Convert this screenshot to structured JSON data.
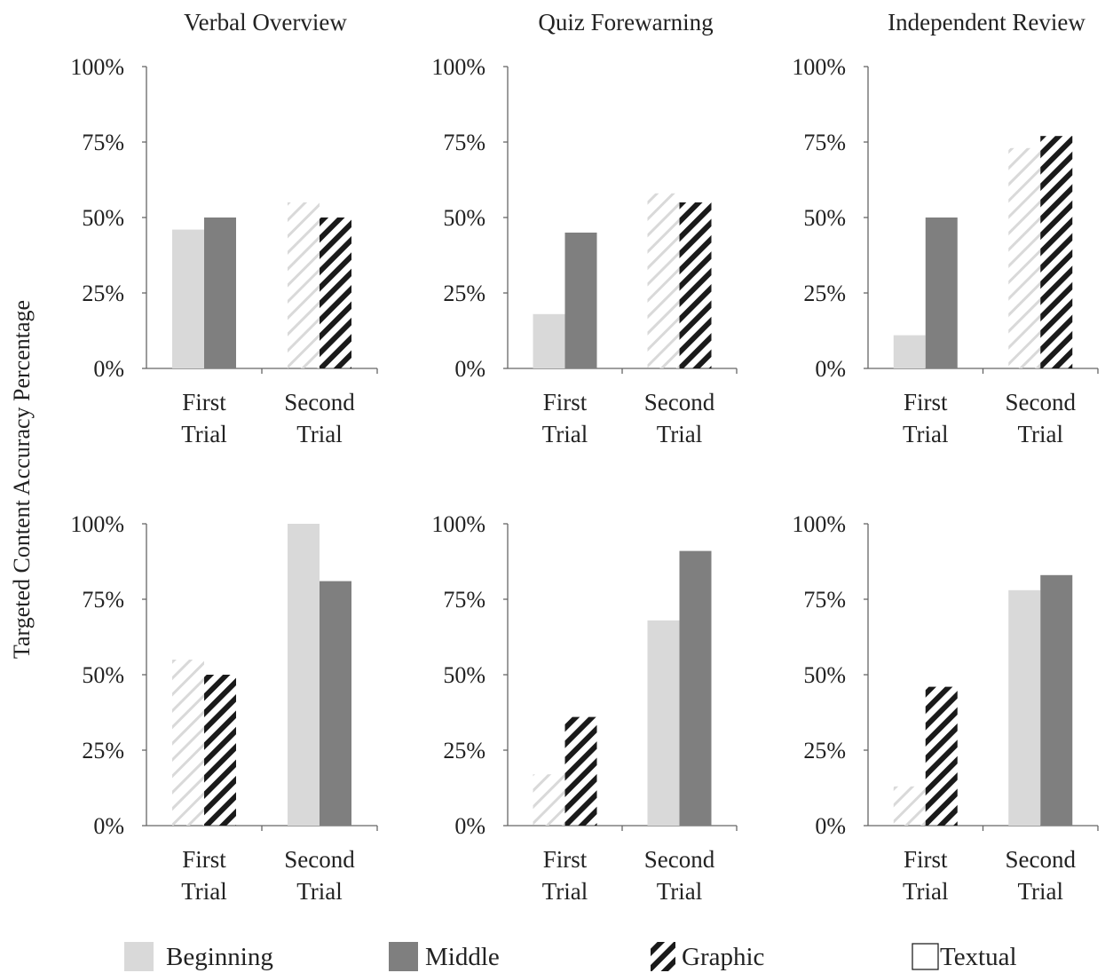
{
  "colors": {
    "beginning": "#d9d9d9",
    "middle": "#7f7f7f",
    "graphic_stripe": "#1a1a1a",
    "textual_stripe": "#d9d9d9"
  },
  "y_axis_label": "Targeted Content Accuracy Percentage",
  "legend": [
    {
      "key": "beginning",
      "label": "Beginning"
    },
    {
      "key": "middle",
      "label": "Middle"
    },
    {
      "key": "graphic",
      "label": "Graphic"
    },
    {
      "key": "textual",
      "label": "Textual"
    }
  ],
  "chart_data": [
    {
      "type": "bar",
      "title": "Verbal Overview",
      "ylim": [
        0,
        100
      ],
      "yticks": [
        "0%",
        "25%",
        "50%",
        "75%",
        "100%"
      ],
      "categories": [
        "First\nTrial",
        "Second\nTrial"
      ],
      "groups": [
        {
          "category": "First Trial",
          "bars": [
            {
              "series": "Beginning",
              "value": 46
            },
            {
              "series": "Middle",
              "value": 50
            }
          ]
        },
        {
          "category": "Second Trial",
          "bars": [
            {
              "series": "Textual",
              "value": 55
            },
            {
              "series": "Graphic",
              "value": 50
            }
          ]
        }
      ]
    },
    {
      "type": "bar",
      "title": "Quiz Forewarning",
      "ylim": [
        0,
        100
      ],
      "yticks": [
        "0%",
        "25%",
        "50%",
        "75%",
        "100%"
      ],
      "categories": [
        "First\nTrial",
        "Second\nTrial"
      ],
      "groups": [
        {
          "category": "First Trial",
          "bars": [
            {
              "series": "Beginning",
              "value": 18
            },
            {
              "series": "Middle",
              "value": 45
            }
          ]
        },
        {
          "category": "Second Trial",
          "bars": [
            {
              "series": "Textual",
              "value": 58
            },
            {
              "series": "Graphic",
              "value": 55
            }
          ]
        }
      ]
    },
    {
      "type": "bar",
      "title": "Independent Review",
      "ylim": [
        0,
        100
      ],
      "yticks": [
        "0%",
        "25%",
        "50%",
        "75%",
        "100%"
      ],
      "categories": [
        "First\nTrial",
        "Second\nTrial"
      ],
      "groups": [
        {
          "category": "First Trial",
          "bars": [
            {
              "series": "Beginning",
              "value": 11
            },
            {
              "series": "Middle",
              "value": 50
            }
          ]
        },
        {
          "category": "Second Trial",
          "bars": [
            {
              "series": "Textual",
              "value": 73
            },
            {
              "series": "Graphic",
              "value": 77
            }
          ]
        }
      ]
    },
    {
      "type": "bar",
      "title": "",
      "ylim": [
        0,
        100
      ],
      "yticks": [
        "0%",
        "25%",
        "50%",
        "75%",
        "100%"
      ],
      "categories": [
        "First\nTrial",
        "Second\nTrial"
      ],
      "groups": [
        {
          "category": "First Trial",
          "bars": [
            {
              "series": "Textual",
              "value": 55
            },
            {
              "series": "Graphic",
              "value": 50
            }
          ]
        },
        {
          "category": "Second Trial",
          "bars": [
            {
              "series": "Beginning",
              "value": 100
            },
            {
              "series": "Middle",
              "value": 81
            }
          ]
        }
      ]
    },
    {
      "type": "bar",
      "title": "",
      "ylim": [
        0,
        100
      ],
      "yticks": [
        "0%",
        "25%",
        "50%",
        "75%",
        "100%"
      ],
      "categories": [
        "First\nTrial",
        "Second\nTrial"
      ],
      "groups": [
        {
          "category": "First Trial",
          "bars": [
            {
              "series": "Textual",
              "value": 17
            },
            {
              "series": "Graphic",
              "value": 36
            }
          ]
        },
        {
          "category": "Second Trial",
          "bars": [
            {
              "series": "Beginning",
              "value": 68
            },
            {
              "series": "Middle",
              "value": 91
            }
          ]
        }
      ]
    },
    {
      "type": "bar",
      "title": "",
      "ylim": [
        0,
        100
      ],
      "yticks": [
        "0%",
        "25%",
        "50%",
        "75%",
        "100%"
      ],
      "categories": [
        "First\nTrial",
        "Second\nTrial"
      ],
      "groups": [
        {
          "category": "First Trial",
          "bars": [
            {
              "series": "Textual",
              "value": 13
            },
            {
              "series": "Graphic",
              "value": 46
            }
          ]
        },
        {
          "category": "Second Trial",
          "bars": [
            {
              "series": "Beginning",
              "value": 78
            },
            {
              "series": "Middle",
              "value": 83
            }
          ]
        }
      ]
    }
  ]
}
